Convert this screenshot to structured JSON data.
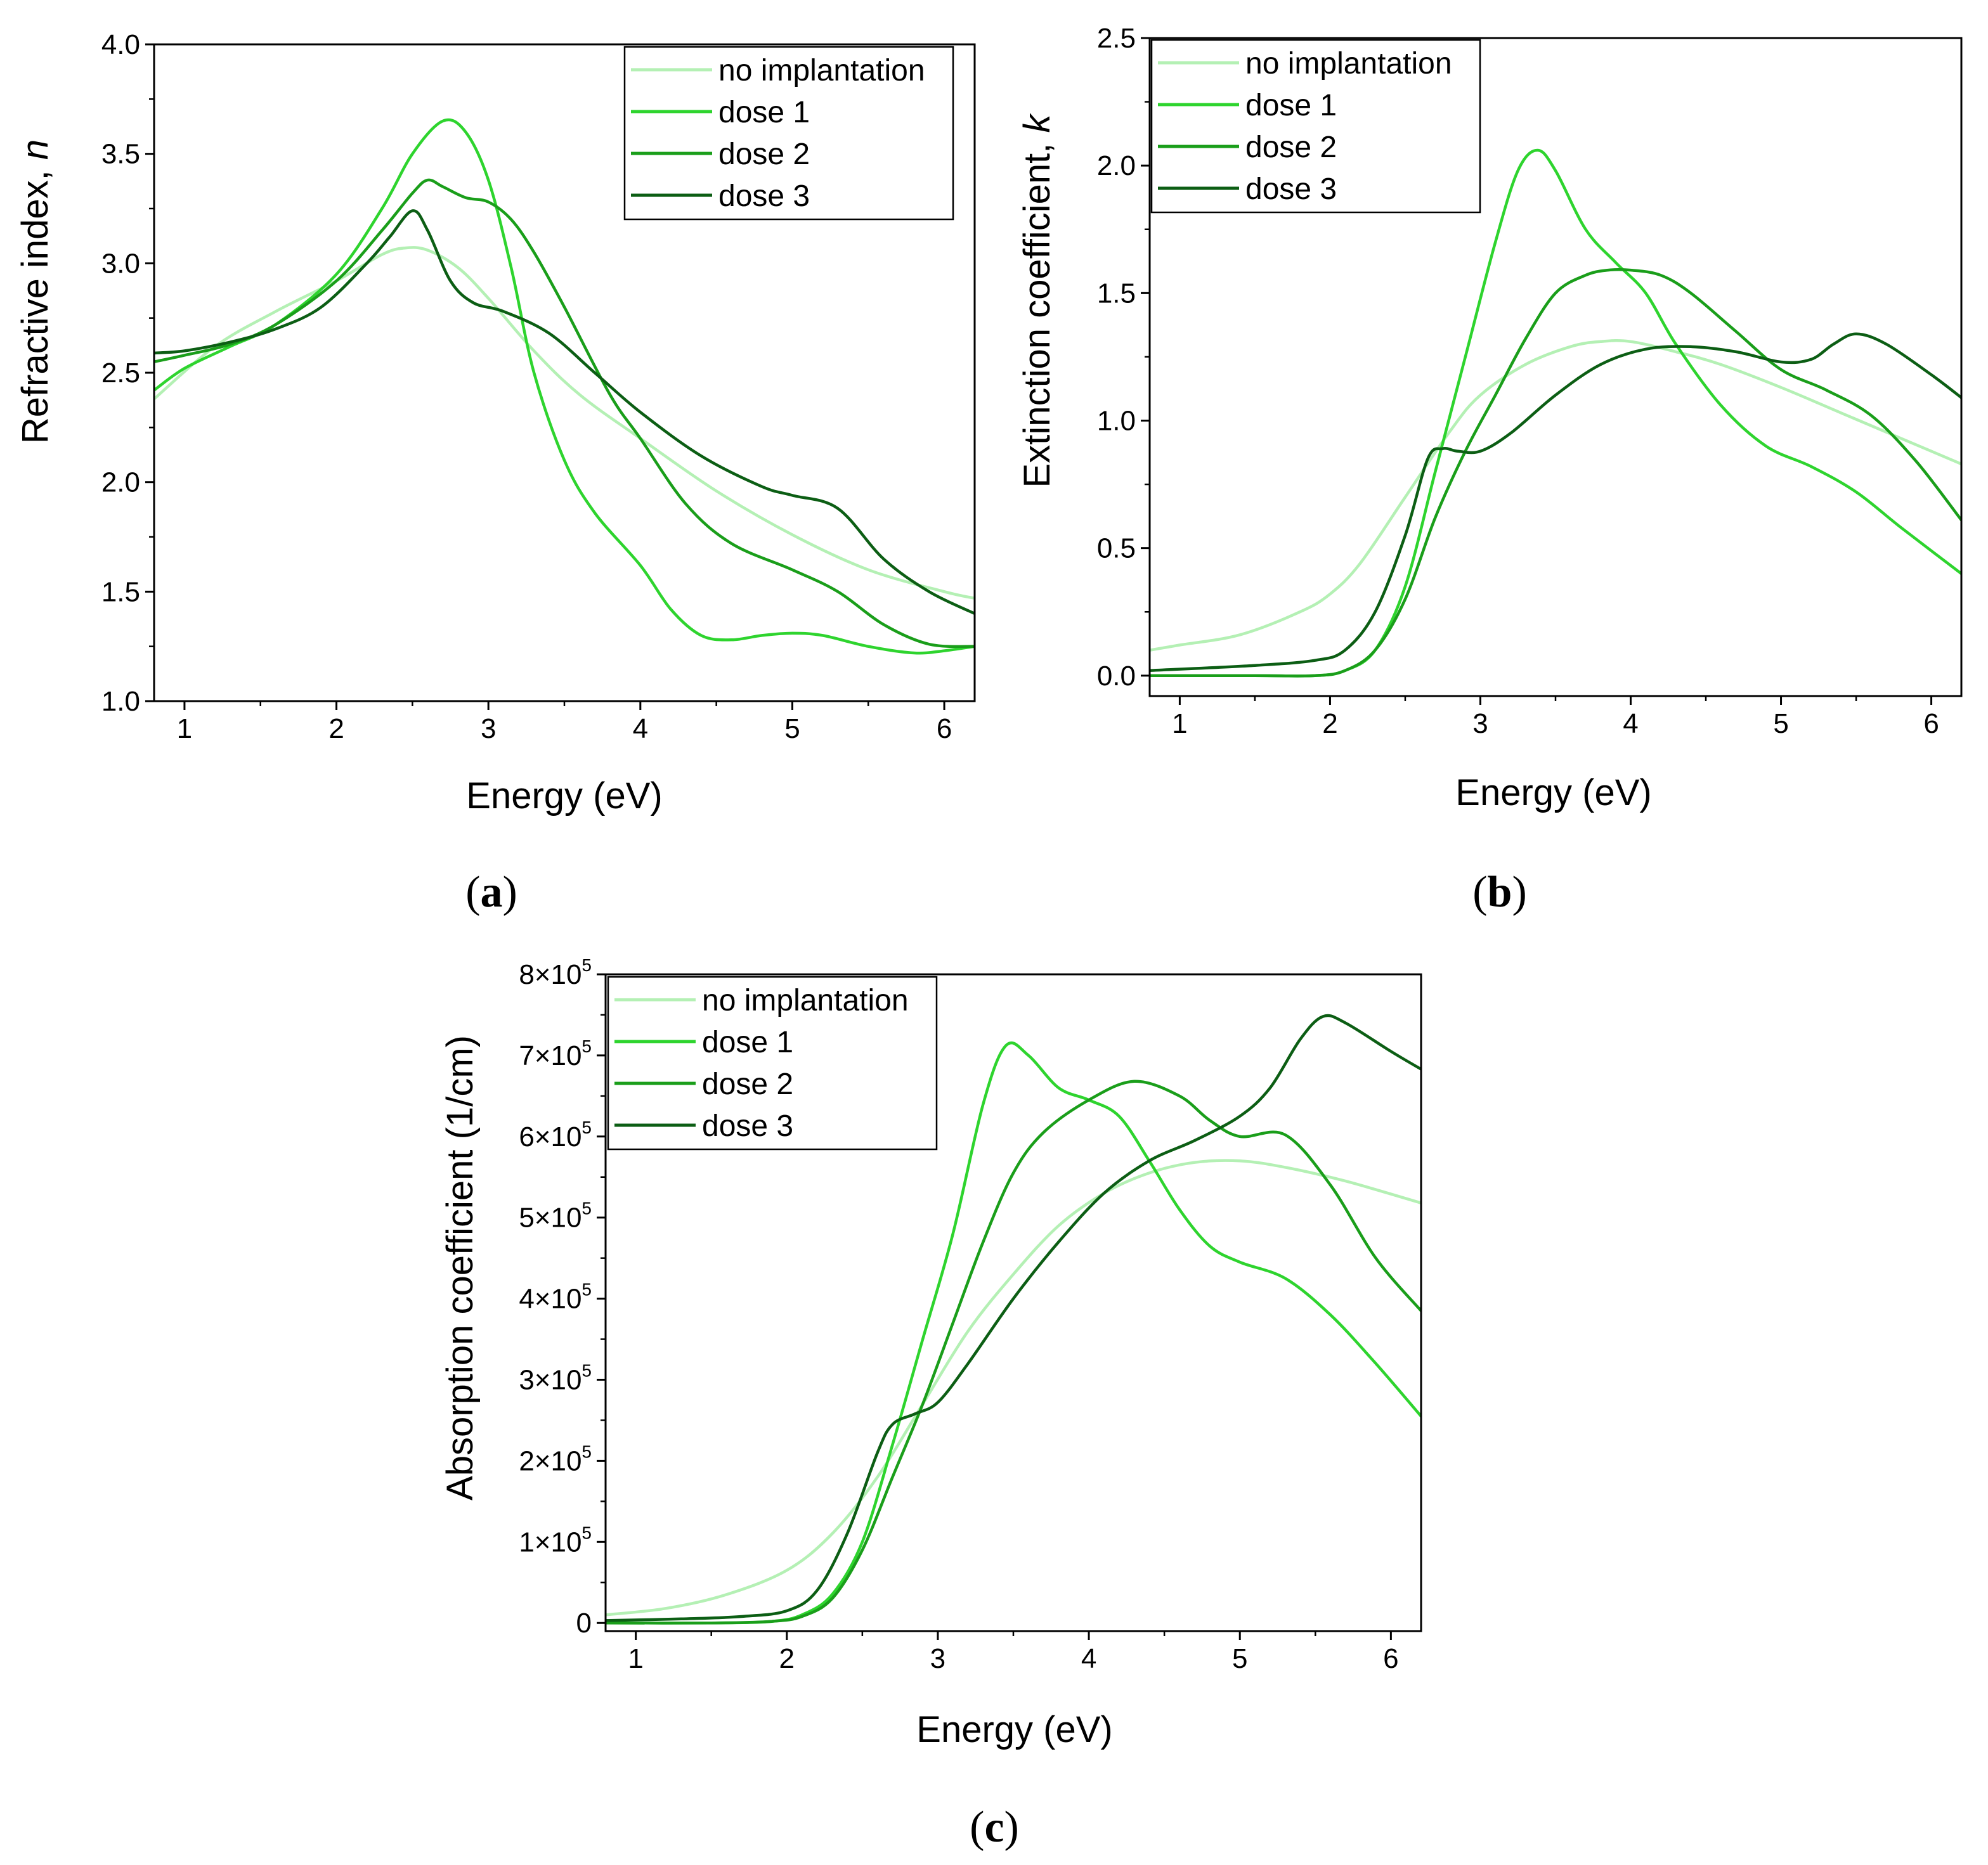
{
  "series_colors": {
    "no implantation": "#b4f0b4",
    "dose 1": "#2ed42e",
    "dose 2": "#1a9e1a",
    "dose 3": "#0c5e14"
  },
  "chart_data": [
    {
      "id": "a",
      "type": "line",
      "caption_letter": "a",
      "xlabel": "Energy (eV)",
      "ylabel": "Refractive index, ",
      "ylabel_italic": "n",
      "xlim": [
        0.8,
        6.2
      ],
      "ylim": [
        1.0,
        4.0
      ],
      "xticks": [
        1,
        2,
        3,
        4,
        5,
        6
      ],
      "yticks": [
        1.0,
        1.5,
        2.0,
        2.5,
        3.0,
        3.5,
        4.0
      ],
      "ytick_labels": [
        "1.0",
        "1.5",
        "2.0",
        "2.5",
        "3.0",
        "3.5",
        "4.0"
      ],
      "legend_position": "top-right",
      "series": [
        {
          "name": "no implantation",
          "x": [
            0.8,
            1.2,
            1.6,
            2.0,
            2.3,
            2.45,
            2.6,
            2.8,
            3.0,
            3.3,
            3.6,
            4.0,
            4.5,
            5.0,
            5.5,
            6.0,
            6.2
          ],
          "values": [
            2.38,
            2.62,
            2.78,
            2.92,
            3.04,
            3.07,
            3.06,
            2.98,
            2.84,
            2.6,
            2.4,
            2.2,
            1.96,
            1.76,
            1.6,
            1.5,
            1.47
          ]
        },
        {
          "name": "dose 1",
          "x": [
            0.8,
            1.0,
            1.3,
            1.6,
            2.0,
            2.3,
            2.5,
            2.7,
            2.85,
            3.0,
            3.15,
            3.3,
            3.5,
            3.7,
            4.0,
            4.2,
            4.4,
            4.6,
            4.8,
            5.0,
            5.2,
            5.5,
            5.8,
            6.0,
            6.2
          ],
          "values": [
            2.42,
            2.52,
            2.62,
            2.72,
            2.95,
            3.25,
            3.5,
            3.65,
            3.6,
            3.38,
            2.98,
            2.5,
            2.1,
            1.86,
            1.62,
            1.42,
            1.3,
            1.28,
            1.3,
            1.31,
            1.3,
            1.25,
            1.22,
            1.23,
            1.25
          ]
        },
        {
          "name": "dose 2",
          "x": [
            0.8,
            1.0,
            1.3,
            1.6,
            2.0,
            2.3,
            2.5,
            2.6,
            2.7,
            2.85,
            3.0,
            3.15,
            3.3,
            3.5,
            3.8,
            4.0,
            4.3,
            4.6,
            5.0,
            5.3,
            5.6,
            5.9,
            6.2
          ],
          "values": [
            2.55,
            2.58,
            2.63,
            2.72,
            2.92,
            3.15,
            3.32,
            3.38,
            3.35,
            3.3,
            3.28,
            3.2,
            3.05,
            2.8,
            2.4,
            2.2,
            1.9,
            1.72,
            1.6,
            1.5,
            1.35,
            1.26,
            1.25
          ]
        },
        {
          "name": "dose 3",
          "x": [
            0.8,
            1.0,
            1.3,
            1.6,
            1.9,
            2.2,
            2.35,
            2.5,
            2.6,
            2.75,
            2.9,
            3.1,
            3.4,
            3.7,
            4.0,
            4.4,
            4.8,
            5.0,
            5.3,
            5.6,
            5.9,
            6.2
          ],
          "values": [
            2.59,
            2.6,
            2.64,
            2.7,
            2.8,
            3.0,
            3.12,
            3.24,
            3.15,
            2.92,
            2.82,
            2.78,
            2.68,
            2.5,
            2.32,
            2.12,
            1.98,
            1.94,
            1.88,
            1.65,
            1.5,
            1.4
          ]
        }
      ]
    },
    {
      "id": "b",
      "type": "line",
      "caption_letter": "b",
      "xlabel": "Energy (eV)",
      "ylabel": "Extinction coefficient, ",
      "ylabel_italic": "k",
      "xlim": [
        0.8,
        6.2
      ],
      "ylim": [
        -0.08,
        2.5
      ],
      "xticks": [
        1,
        2,
        3,
        4,
        5,
        6
      ],
      "yticks": [
        0.0,
        0.5,
        1.0,
        1.5,
        2.0,
        2.5
      ],
      "ytick_labels": [
        "0.0",
        "0.5",
        "1.0",
        "1.5",
        "2.0",
        "2.5"
      ],
      "legend_position": "top-left",
      "series": [
        {
          "name": "no implantation",
          "x": [
            0.8,
            1.0,
            1.4,
            1.8,
            2.0,
            2.2,
            2.5,
            2.8,
            3.0,
            3.3,
            3.6,
            3.8,
            4.0,
            4.3,
            4.6,
            5.0,
            5.4,
            5.8,
            6.2
          ],
          "values": [
            0.1,
            0.12,
            0.16,
            0.25,
            0.32,
            0.44,
            0.7,
            0.96,
            1.1,
            1.22,
            1.29,
            1.31,
            1.31,
            1.27,
            1.22,
            1.13,
            1.03,
            0.93,
            0.83
          ]
        },
        {
          "name": "dose 1",
          "x": [
            0.8,
            1.5,
            1.9,
            2.1,
            2.3,
            2.5,
            2.7,
            2.9,
            3.1,
            3.25,
            3.38,
            3.5,
            3.7,
            3.9,
            4.1,
            4.3,
            4.6,
            4.9,
            5.2,
            5.5,
            5.8,
            6.2
          ],
          "values": [
            0.0,
            0.0,
            0.0,
            0.02,
            0.1,
            0.35,
            0.8,
            1.25,
            1.7,
            1.98,
            2.06,
            1.98,
            1.75,
            1.62,
            1.5,
            1.3,
            1.06,
            0.9,
            0.82,
            0.72,
            0.58,
            0.4
          ]
        },
        {
          "name": "dose 2",
          "x": [
            0.8,
            1.5,
            1.9,
            2.1,
            2.3,
            2.5,
            2.7,
            2.9,
            3.1,
            3.3,
            3.5,
            3.7,
            3.85,
            4.0,
            4.2,
            4.4,
            4.7,
            5.0,
            5.3,
            5.6,
            5.9,
            6.2
          ],
          "values": [
            0.0,
            0.0,
            0.0,
            0.02,
            0.1,
            0.3,
            0.62,
            0.88,
            1.1,
            1.32,
            1.5,
            1.57,
            1.59,
            1.59,
            1.57,
            1.5,
            1.35,
            1.2,
            1.12,
            1.02,
            0.84,
            0.61
          ]
        },
        {
          "name": "dose 3",
          "x": [
            0.8,
            1.5,
            1.9,
            2.1,
            2.3,
            2.5,
            2.65,
            2.75,
            2.85,
            3.0,
            3.2,
            3.5,
            3.8,
            4.1,
            4.4,
            4.7,
            5.0,
            5.2,
            5.35,
            5.5,
            5.7,
            6.0,
            6.2
          ],
          "values": [
            0.02,
            0.04,
            0.06,
            0.1,
            0.25,
            0.55,
            0.85,
            0.89,
            0.88,
            0.88,
            0.95,
            1.1,
            1.22,
            1.28,
            1.29,
            1.27,
            1.23,
            1.24,
            1.3,
            1.34,
            1.3,
            1.18,
            1.09
          ]
        }
      ]
    },
    {
      "id": "c",
      "type": "line",
      "caption_letter": "c",
      "xlabel": "Energy (eV)",
      "ylabel": "Absorption coefficient (1/cm)",
      "ylabel_italic": "",
      "xlim": [
        0.8,
        6.2
      ],
      "ylim": [
        -10000,
        800000
      ],
      "xticks": [
        1,
        2,
        3,
        4,
        5,
        6
      ],
      "yticks": [
        0,
        100000,
        200000,
        300000,
        400000,
        500000,
        600000,
        700000,
        800000
      ],
      "ytick_labels": [
        "0",
        "1×10",
        "2×10",
        "3×10",
        "4×10",
        "5×10",
        "6×10",
        "7×10",
        "8×10"
      ],
      "ytick_exponent": "5",
      "legend_position": "top-left",
      "series": [
        {
          "name": "no implantation",
          "x": [
            0.8,
            1.2,
            1.6,
            2.0,
            2.3,
            2.6,
            2.9,
            3.2,
            3.5,
            3.8,
            4.1,
            4.4,
            4.7,
            5.0,
            5.3,
            5.7,
            6.2
          ],
          "values": [
            10000,
            18000,
            35000,
            65000,
            110000,
            180000,
            270000,
            360000,
            430000,
            490000,
            530000,
            555000,
            568000,
            570000,
            562000,
            545000,
            518000
          ]
        },
        {
          "name": "dose 1",
          "x": [
            0.8,
            1.5,
            1.9,
            2.1,
            2.3,
            2.5,
            2.7,
            2.9,
            3.1,
            3.3,
            3.45,
            3.6,
            3.8,
            4.0,
            4.2,
            4.4,
            4.6,
            4.8,
            5.0,
            5.3,
            5.6,
            5.9,
            6.2
          ],
          "values": [
            0,
            0,
            2000,
            10000,
            35000,
            100000,
            220000,
            350000,
            480000,
            640000,
            712000,
            700000,
            660000,
            645000,
            625000,
            570000,
            510000,
            465000,
            445000,
            425000,
            380000,
            320000,
            255000
          ]
        },
        {
          "name": "dose 2",
          "x": [
            0.8,
            1.5,
            1.9,
            2.1,
            2.3,
            2.5,
            2.7,
            2.9,
            3.1,
            3.3,
            3.5,
            3.7,
            4.0,
            4.3,
            4.6,
            4.8,
            5.0,
            5.3,
            5.6,
            5.9,
            6.2
          ],
          "values": [
            0,
            0,
            2000,
            8000,
            30000,
            90000,
            180000,
            270000,
            370000,
            470000,
            555000,
            605000,
            645000,
            668000,
            650000,
            620000,
            600000,
            602000,
            540000,
            450000,
            385000
          ]
        },
        {
          "name": "dose 3",
          "x": [
            0.8,
            1.3,
            1.7,
            2.0,
            2.2,
            2.4,
            2.6,
            2.7,
            2.85,
            3.0,
            3.2,
            3.5,
            3.8,
            4.1,
            4.4,
            4.7,
            5.0,
            5.2,
            5.4,
            5.55,
            5.7,
            6.0,
            6.2
          ],
          "values": [
            3000,
            5000,
            8000,
            15000,
            40000,
            110000,
            210000,
            245000,
            258000,
            272000,
            320000,
            400000,
            470000,
            530000,
            570000,
            595000,
            625000,
            660000,
            720000,
            748000,
            740000,
            705000,
            683000
          ]
        }
      ]
    }
  ]
}
